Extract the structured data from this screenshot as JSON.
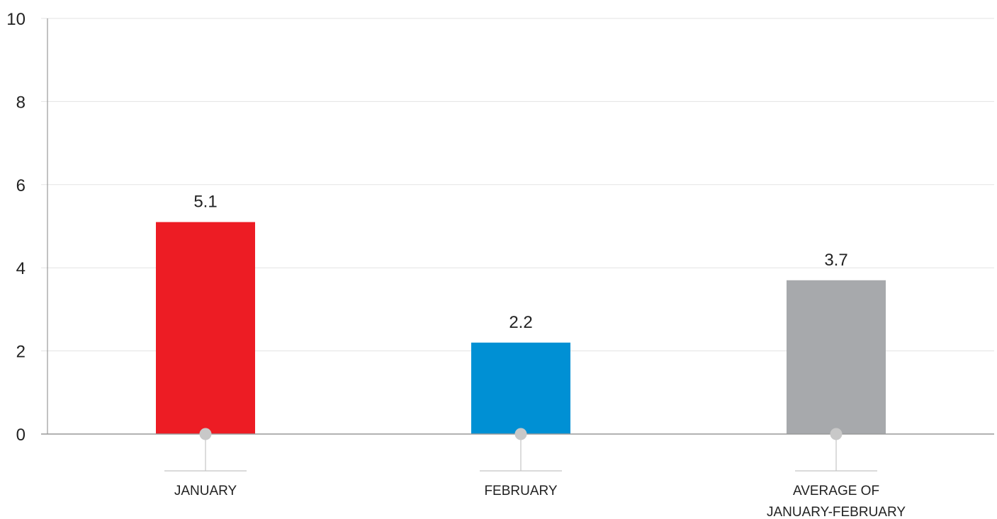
{
  "chart_data": {
    "type": "bar",
    "title": "",
    "xlabel": "",
    "ylabel": "",
    "ylim": [
      0,
      10
    ],
    "yticks": [
      0,
      2,
      4,
      6,
      8,
      10
    ],
    "grid": true,
    "legend": "none",
    "categories": [
      [
        "JANUARY"
      ],
      [
        "FEBRUARY"
      ],
      [
        "AVERAGE OF",
        "JANUARY-FEBRUARY"
      ]
    ],
    "values": [
      5.1,
      2.2,
      3.7
    ],
    "value_labels": [
      "5.1",
      "2.2",
      "3.7"
    ],
    "colors": [
      "#ed1c24",
      "#0090d4",
      "#a7a9ac"
    ],
    "axis_color": "#999999",
    "grid_color": "#e3e3e3",
    "marker_color": "#c8c8c8"
  }
}
